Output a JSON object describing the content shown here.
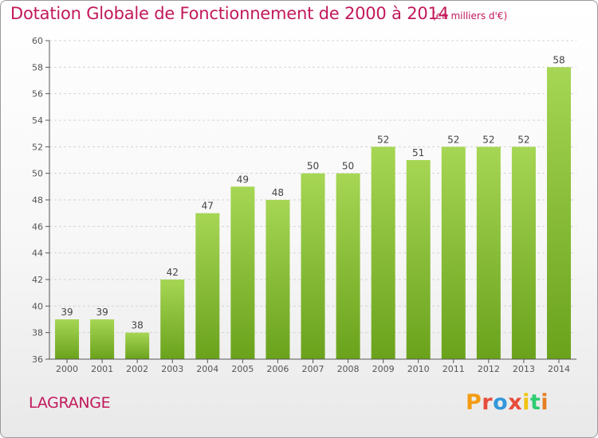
{
  "title": "Dotation Globale de Fonctionnement de 2000 à 2014",
  "unit_note": "(en milliers d'€)",
  "commune": "LAGRANGE",
  "logo": {
    "text": "Proxiti",
    "colors": [
      "#f39c12",
      "#e74c3c",
      "#3498db",
      "#e74c3c",
      "#f1c40f",
      "#2ecc71",
      "#e67e22"
    ]
  },
  "colors": {
    "bar_light": "#a6d654",
    "bar_dark": "#6aa21c",
    "title": "#c2185b",
    "axis": "#555555",
    "grid": "#d4d4d4"
  },
  "chart_data": {
    "type": "bar",
    "categories": [
      "2000",
      "2001",
      "2002",
      "2003",
      "2004",
      "2005",
      "2006",
      "2007",
      "2008",
      "2009",
      "2010",
      "2011",
      "2012",
      "2013",
      "2014"
    ],
    "values": [
      39,
      39,
      38,
      42,
      47,
      49,
      48,
      50,
      50,
      52,
      51,
      52,
      52,
      52,
      58
    ],
    "ylim": [
      36,
      60
    ],
    "yticks": [
      36,
      38,
      40,
      42,
      44,
      46,
      48,
      50,
      52,
      54,
      56,
      58,
      60
    ],
    "grid": true
  }
}
